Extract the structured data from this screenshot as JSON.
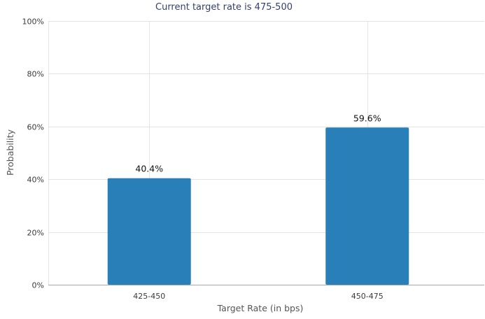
{
  "chart_data": {
    "type": "bar",
    "title": "Current target rate is 475-500",
    "xlabel": "Target Rate (in bps)",
    "ylabel": "Probability",
    "categories": [
      "425-450",
      "450-475"
    ],
    "values": [
      40.4,
      59.6
    ],
    "data_labels": [
      "40.4%",
      "59.6%"
    ],
    "ylim": [
      0,
      100
    ],
    "yticks": [
      0,
      20,
      40,
      60,
      80,
      100
    ],
    "ytick_labels": [
      "0%",
      "20%",
      "40%",
      "60%",
      "80%",
      "100%"
    ],
    "grid": true,
    "bar_color": "#2980b9"
  }
}
